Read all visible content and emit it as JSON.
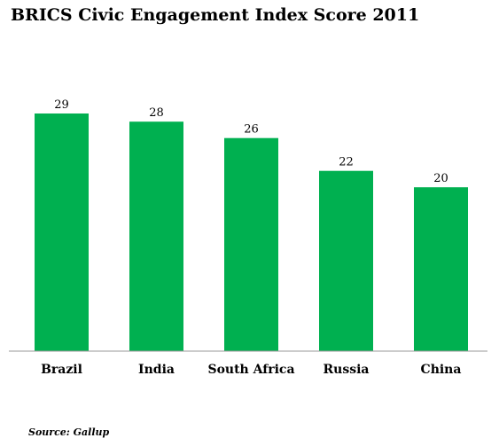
{
  "chart_data": {
    "type": "bar",
    "title": "BRICS Civic Engagement Index Score 2011",
    "xlabel": "",
    "ylabel": "",
    "categories": [
      "Brazil",
      "India",
      "South Africa",
      "Russia",
      "China"
    ],
    "values": [
      29,
      28,
      26,
      22,
      20
    ],
    "ylim": [
      0,
      29
    ],
    "grid": false,
    "legend": "none",
    "data_labels": true,
    "bar_color": "#00b050"
  },
  "source": "Source: Gallup"
}
